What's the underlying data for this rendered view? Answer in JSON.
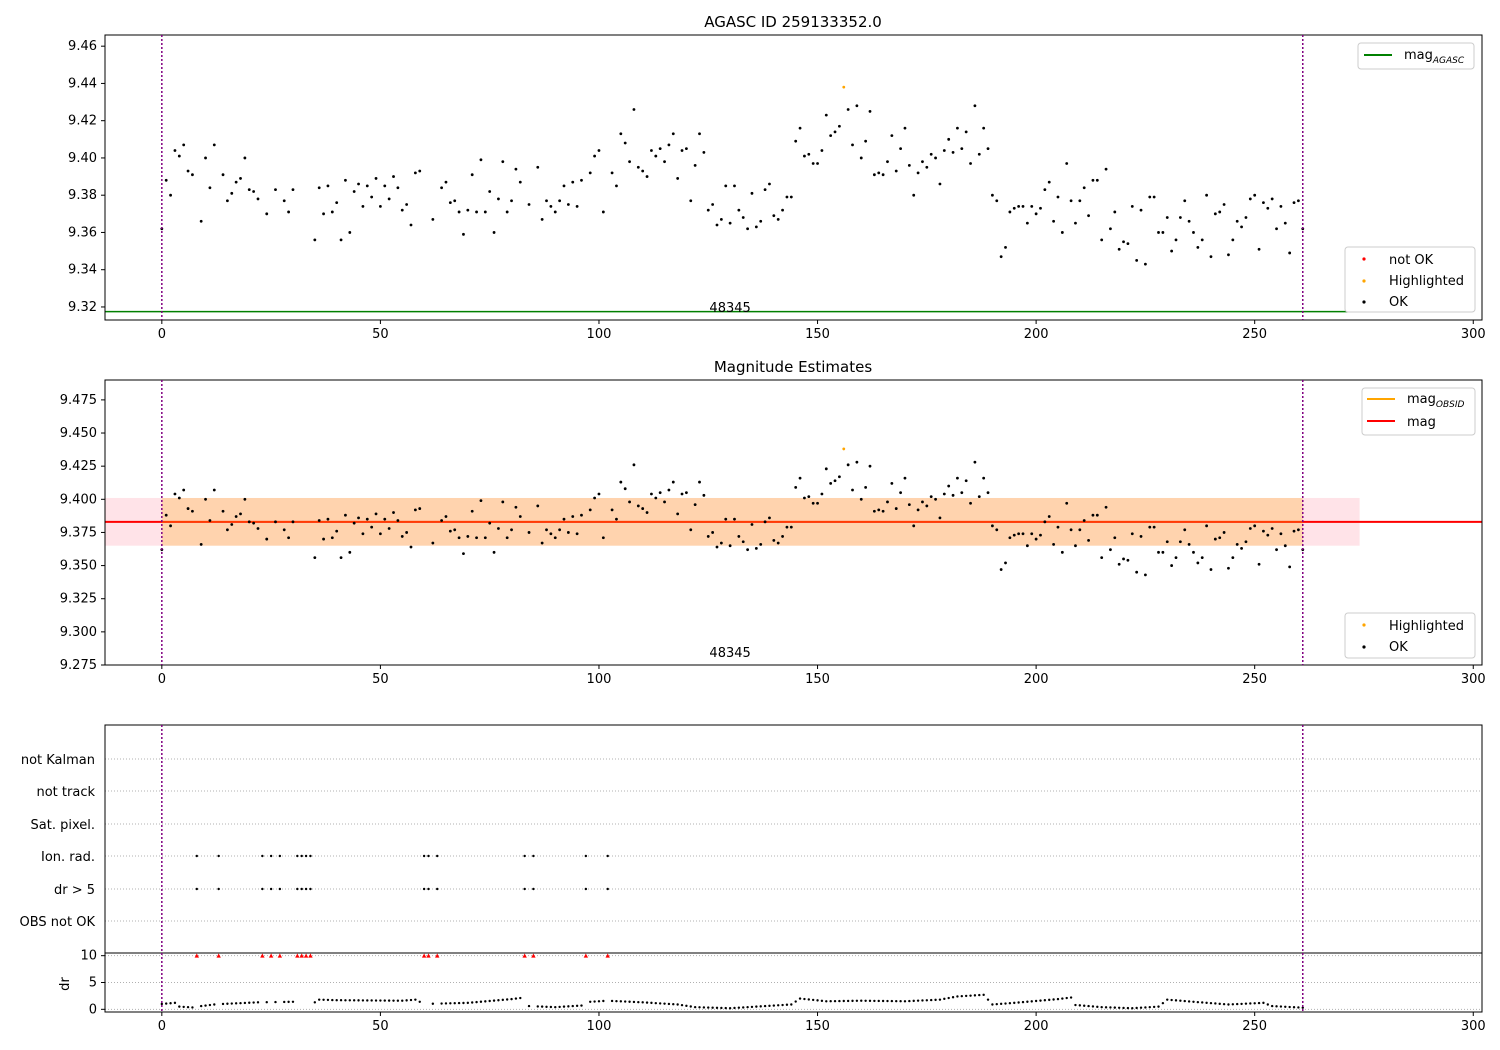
{
  "chart_data": [
    {
      "type": "scatter",
      "title": "AGASC ID 259133352.0",
      "xlim": [
        -13,
        302
      ],
      "ylim": [
        9.313,
        9.466
      ],
      "xticks": [
        0,
        50,
        100,
        150,
        200,
        250,
        300
      ],
      "yticks": [
        9.32,
        9.34,
        9.36,
        9.38,
        9.4,
        9.42,
        9.44,
        9.46
      ],
      "grid": false,
      "obsid_label": "48345",
      "obsid_label_x": 130,
      "vlines": [
        0,
        261
      ],
      "reference_line": {
        "name": "mag",
        "sub": "AGASC",
        "y": 9.3175,
        "x0": -13,
        "x1": 274,
        "color": "#008000"
      },
      "legend_top": {
        "placement": "top-right",
        "entries": [
          {
            "name": "mag",
            "sub": "AGASC",
            "color": "#008000",
            "marker": "line"
          }
        ]
      },
      "legend_bottom": {
        "placement": "bottom-right",
        "entries": [
          {
            "name": "not OK",
            "color": "#ff0000",
            "marker": "dot"
          },
          {
            "name": "Highlighted",
            "color": "#ffa500",
            "marker": "dot"
          },
          {
            "name": "OK",
            "color": "#000000",
            "marker": "dot"
          }
        ]
      },
      "highlighted": [
        {
          "x": 156,
          "y": 9.438
        }
      ],
      "series_ok_note": "points listed in shared_points"
    },
    {
      "type": "scatter",
      "title": "Magnitude Estimates",
      "xlim": [
        -13,
        302
      ],
      "ylim": [
        9.275,
        9.49
      ],
      "xticks": [
        0,
        50,
        100,
        150,
        200,
        250,
        300
      ],
      "yticks": [
        9.275,
        9.3,
        9.325,
        9.35,
        9.375,
        9.4,
        9.425,
        9.45,
        9.475
      ],
      "ytick_labels": [
        "9.275",
        "9.300",
        "9.325",
        "9.350",
        "9.375",
        "9.400",
        "9.425",
        "9.450",
        "9.475"
      ],
      "grid": false,
      "obsid_label": "48345",
      "obsid_label_x": 130,
      "vlines": [
        0,
        261
      ],
      "mag_line": {
        "name": "mag",
        "y": 9.383,
        "x0": -13,
        "x1": 302,
        "color": "#ff0000"
      },
      "mag_obsid_line": {
        "name": "mag",
        "sub": "OBSID",
        "y": 9.383,
        "x0": 0,
        "x1": 261,
        "color": "#ffa500"
      },
      "band_mag": {
        "y0": 9.365,
        "y1": 9.401,
        "x0": -13,
        "x1": 274,
        "color": "#ffc0cb"
      },
      "band_obsid": {
        "y0": 9.365,
        "y1": 9.401,
        "x0": 0,
        "x1": 261,
        "color": "#ffa500"
      },
      "legend_top": {
        "placement": "top-right",
        "entries": [
          {
            "name": "mag",
            "sub": "OBSID",
            "color": "#ffa500",
            "marker": "line"
          },
          {
            "name": "mag",
            "color": "#ff0000",
            "marker": "line"
          }
        ]
      },
      "legend_bottom": {
        "placement": "bottom-right",
        "entries": [
          {
            "name": "Highlighted",
            "color": "#ffa500",
            "marker": "dot"
          },
          {
            "name": "OK",
            "color": "#000000",
            "marker": "dot"
          }
        ]
      },
      "highlighted": [
        {
          "x": 156,
          "y": 9.438
        }
      ]
    },
    {
      "type": "scatter",
      "xlim": [
        -13,
        302
      ],
      "xticks": [
        0,
        50,
        100,
        150,
        200,
        250,
        300
      ],
      "categories": [
        "OBS not OK",
        "dr > 5",
        "Ion. rad.",
        "Sat. pixel.",
        "not track",
        "not Kalman"
      ],
      "vlines": [
        0,
        261
      ],
      "flag_points": {
        "dr > 5": [
          8,
          13,
          23,
          25,
          27,
          31,
          32,
          33,
          34,
          60,
          61,
          63,
          83,
          85,
          97,
          102
        ],
        "Ion. rad.": [
          8,
          13,
          23,
          25,
          27,
          31,
          32,
          33,
          34,
          60,
          61,
          63,
          83,
          85,
          97,
          102
        ]
      }
    },
    {
      "type": "scatter",
      "ylabel": "dr",
      "xlim": [
        -13,
        302
      ],
      "ylim": [
        -0.5,
        10.5
      ],
      "yticks": [
        0,
        5,
        10
      ],
      "xticks": [
        0,
        50,
        100,
        150,
        200,
        250,
        300
      ],
      "capped_marker_y": 10,
      "capped_points_x": [
        8,
        13,
        23,
        25,
        27,
        31,
        32,
        33,
        34,
        60,
        61,
        63,
        83,
        85,
        97,
        102
      ],
      "dr_profile": [
        [
          0,
          1.0
        ],
        [
          3,
          1.2
        ],
        [
          4,
          0.5
        ],
        [
          8,
          0.3
        ],
        [
          9,
          0.6
        ],
        [
          12,
          0.9
        ],
        [
          14,
          1.0
        ],
        [
          22,
          1.3
        ],
        [
          30,
          1.4
        ],
        [
          35,
          1.3
        ],
        [
          36,
          1.8
        ],
        [
          40,
          1.7
        ],
        [
          55,
          1.6
        ],
        [
          58,
          1.8
        ],
        [
          60,
          1.0
        ],
        [
          70,
          1.2
        ],
        [
          80,
          1.9
        ],
        [
          82,
          2.1
        ],
        [
          84,
          0.6
        ],
        [
          90,
          0.4
        ],
        [
          96,
          0.7
        ],
        [
          98,
          1.4
        ],
        [
          102,
          1.6
        ],
        [
          110,
          1.3
        ],
        [
          118,
          0.9
        ],
        [
          122,
          0.4
        ],
        [
          130,
          0.2
        ],
        [
          138,
          0.6
        ],
        [
          144,
          0.9
        ],
        [
          146,
          2.0
        ],
        [
          152,
          1.5
        ],
        [
          160,
          1.6
        ],
        [
          170,
          1.5
        ],
        [
          178,
          1.8
        ],
        [
          182,
          2.4
        ],
        [
          188,
          2.7
        ],
        [
          190,
          0.9
        ],
        [
          195,
          1.2
        ],
        [
          205,
          1.9
        ],
        [
          208,
          2.2
        ],
        [
          209,
          0.8
        ],
        [
          215,
          0.4
        ],
        [
          222,
          0.2
        ],
        [
          228,
          0.5
        ],
        [
          230,
          1.8
        ],
        [
          236,
          1.4
        ],
        [
          244,
          0.9
        ],
        [
          252,
          1.2
        ],
        [
          254,
          0.6
        ],
        [
          261,
          0.3
        ]
      ]
    }
  ],
  "shared_points": [
    [
      0,
      9.362
    ],
    [
      1,
      9.388
    ],
    [
      2,
      9.38
    ],
    [
      3,
      9.404
    ],
    [
      4,
      9.401
    ],
    [
      5,
      9.407
    ],
    [
      6,
      9.393
    ],
    [
      7,
      9.391
    ],
    [
      9,
      9.366
    ],
    [
      10,
      9.4
    ],
    [
      11,
      9.384
    ],
    [
      12,
      9.407
    ],
    [
      14,
      9.391
    ],
    [
      15,
      9.377
    ],
    [
      16,
      9.381
    ],
    [
      17,
      9.387
    ],
    [
      18,
      9.389
    ],
    [
      19,
      9.4
    ],
    [
      20,
      9.383
    ],
    [
      21,
      9.382
    ],
    [
      22,
      9.378
    ],
    [
      24,
      9.37
    ],
    [
      26,
      9.383
    ],
    [
      28,
      9.377
    ],
    [
      29,
      9.371
    ],
    [
      30,
      9.383
    ],
    [
      35,
      9.356
    ],
    [
      36,
      9.384
    ],
    [
      37,
      9.37
    ],
    [
      38,
      9.385
    ],
    [
      39,
      9.371
    ],
    [
      40,
      9.376
    ],
    [
      41,
      9.356
    ],
    [
      42,
      9.388
    ],
    [
      43,
      9.36
    ],
    [
      44,
      9.382
    ],
    [
      45,
      9.386
    ],
    [
      46,
      9.374
    ],
    [
      47,
      9.385
    ],
    [
      48,
      9.379
    ],
    [
      49,
      9.389
    ],
    [
      50,
      9.374
    ],
    [
      51,
      9.385
    ],
    [
      52,
      9.378
    ],
    [
      53,
      9.39
    ],
    [
      54,
      9.384
    ],
    [
      55,
      9.372
    ],
    [
      56,
      9.375
    ],
    [
      57,
      9.364
    ],
    [
      58,
      9.392
    ],
    [
      59,
      9.393
    ],
    [
      62,
      9.367
    ],
    [
      64,
      9.384
    ],
    [
      65,
      9.387
    ],
    [
      66,
      9.376
    ],
    [
      67,
      9.377
    ],
    [
      68,
      9.371
    ],
    [
      69,
      9.359
    ],
    [
      70,
      9.372
    ],
    [
      71,
      9.391
    ],
    [
      72,
      9.371
    ],
    [
      73,
      9.399
    ],
    [
      74,
      9.371
    ],
    [
      75,
      9.382
    ],
    [
      76,
      9.36
    ],
    [
      77,
      9.378
    ],
    [
      78,
      9.398
    ],
    [
      79,
      9.371
    ],
    [
      80,
      9.377
    ],
    [
      81,
      9.394
    ],
    [
      82,
      9.387
    ],
    [
      84,
      9.375
    ],
    [
      86,
      9.395
    ],
    [
      87,
      9.367
    ],
    [
      88,
      9.377
    ],
    [
      89,
      9.374
    ],
    [
      90,
      9.371
    ],
    [
      91,
      9.377
    ],
    [
      92,
      9.385
    ],
    [
      93,
      9.375
    ],
    [
      94,
      9.387
    ],
    [
      95,
      9.374
    ],
    [
      96,
      9.388
    ],
    [
      98,
      9.392
    ],
    [
      99,
      9.401
    ],
    [
      100,
      9.404
    ],
    [
      101,
      9.371
    ],
    [
      103,
      9.392
    ],
    [
      104,
      9.385
    ],
    [
      105,
      9.413
    ],
    [
      106,
      9.408
    ],
    [
      107,
      9.398
    ],
    [
      108,
      9.426
    ],
    [
      109,
      9.395
    ],
    [
      110,
      9.393
    ],
    [
      111,
      9.39
    ],
    [
      112,
      9.404
    ],
    [
      113,
      9.401
    ],
    [
      114,
      9.405
    ],
    [
      115,
      9.398
    ],
    [
      116,
      9.407
    ],
    [
      117,
      9.413
    ],
    [
      118,
      9.389
    ],
    [
      119,
      9.404
    ],
    [
      120,
      9.405
    ],
    [
      121,
      9.377
    ],
    [
      122,
      9.396
    ],
    [
      123,
      9.413
    ],
    [
      124,
      9.403
    ],
    [
      125,
      9.372
    ],
    [
      126,
      9.375
    ],
    [
      127,
      9.364
    ],
    [
      128,
      9.367
    ],
    [
      129,
      9.385
    ],
    [
      130,
      9.365
    ],
    [
      131,
      9.385
    ],
    [
      132,
      9.372
    ],
    [
      133,
      9.368
    ],
    [
      134,
      9.362
    ],
    [
      135,
      9.381
    ],
    [
      136,
      9.363
    ],
    [
      137,
      9.366
    ],
    [
      138,
      9.383
    ],
    [
      139,
      9.386
    ],
    [
      140,
      9.369
    ],
    [
      141,
      9.367
    ],
    [
      142,
      9.372
    ],
    [
      143,
      9.379
    ],
    [
      144,
      9.379
    ],
    [
      145,
      9.409
    ],
    [
      146,
      9.416
    ],
    [
      147,
      9.401
    ],
    [
      148,
      9.402
    ],
    [
      149,
      9.397
    ],
    [
      150,
      9.397
    ],
    [
      151,
      9.404
    ],
    [
      152,
      9.423
    ],
    [
      153,
      9.412
    ],
    [
      154,
      9.414
    ],
    [
      155,
      9.417
    ],
    [
      157,
      9.426
    ],
    [
      158,
      9.407
    ],
    [
      159,
      9.428
    ],
    [
      160,
      9.4
    ],
    [
      161,
      9.409
    ],
    [
      162,
      9.425
    ],
    [
      163,
      9.391
    ],
    [
      164,
      9.392
    ],
    [
      165,
      9.391
    ],
    [
      166,
      9.398
    ],
    [
      167,
      9.412
    ],
    [
      168,
      9.393
    ],
    [
      169,
      9.405
    ],
    [
      170,
      9.416
    ],
    [
      171,
      9.396
    ],
    [
      172,
      9.38
    ],
    [
      173,
      9.392
    ],
    [
      174,
      9.398
    ],
    [
      175,
      9.395
    ],
    [
      176,
      9.402
    ],
    [
      177,
      9.4
    ],
    [
      178,
      9.386
    ],
    [
      179,
      9.404
    ],
    [
      180,
      9.41
    ],
    [
      181,
      9.403
    ],
    [
      182,
      9.416
    ],
    [
      183,
      9.405
    ],
    [
      184,
      9.414
    ],
    [
      185,
      9.397
    ],
    [
      186,
      9.428
    ],
    [
      187,
      9.402
    ],
    [
      188,
      9.416
    ],
    [
      189,
      9.405
    ],
    [
      190,
      9.38
    ],
    [
      191,
      9.377
    ],
    [
      192,
      9.347
    ],
    [
      193,
      9.352
    ],
    [
      194,
      9.371
    ],
    [
      195,
      9.373
    ],
    [
      196,
      9.374
    ],
    [
      197,
      9.374
    ],
    [
      198,
      9.365
    ],
    [
      199,
      9.374
    ],
    [
      200,
      9.37
    ],
    [
      201,
      9.373
    ],
    [
      202,
      9.383
    ],
    [
      203,
      9.387
    ],
    [
      204,
      9.366
    ],
    [
      205,
      9.379
    ],
    [
      206,
      9.36
    ],
    [
      207,
      9.397
    ],
    [
      208,
      9.377
    ],
    [
      209,
      9.365
    ],
    [
      210,
      9.377
    ],
    [
      211,
      9.384
    ],
    [
      212,
      9.369
    ],
    [
      213,
      9.388
    ],
    [
      214,
      9.388
    ],
    [
      215,
      9.356
    ],
    [
      216,
      9.394
    ],
    [
      217,
      9.362
    ],
    [
      218,
      9.371
    ],
    [
      219,
      9.351
    ],
    [
      220,
      9.355
    ],
    [
      221,
      9.354
    ],
    [
      222,
      9.374
    ],
    [
      223,
      9.345
    ],
    [
      224,
      9.372
    ],
    [
      225,
      9.343
    ],
    [
      226,
      9.379
    ],
    [
      227,
      9.379
    ],
    [
      228,
      9.36
    ],
    [
      229,
      9.36
    ],
    [
      230,
      9.368
    ],
    [
      231,
      9.35
    ],
    [
      232,
      9.356
    ],
    [
      233,
      9.368
    ],
    [
      234,
      9.377
    ],
    [
      235,
      9.366
    ],
    [
      236,
      9.36
    ],
    [
      237,
      9.352
    ],
    [
      238,
      9.356
    ],
    [
      239,
      9.38
    ],
    [
      240,
      9.347
    ],
    [
      241,
      9.37
    ],
    [
      242,
      9.371
    ],
    [
      243,
      9.375
    ],
    [
      244,
      9.348
    ],
    [
      245,
      9.356
    ],
    [
      246,
      9.366
    ],
    [
      247,
      9.363
    ],
    [
      248,
      9.368
    ],
    [
      249,
      9.378
    ],
    [
      250,
      9.38
    ],
    [
      251,
      9.351
    ],
    [
      252,
      9.376
    ],
    [
      253,
      9.373
    ],
    [
      254,
      9.378
    ],
    [
      255,
      9.362
    ],
    [
      256,
      9.374
    ],
    [
      257,
      9.365
    ],
    [
      258,
      9.349
    ],
    [
      259,
      9.376
    ],
    [
      260,
      9.377
    ],
    [
      261,
      9.362
    ]
  ]
}
